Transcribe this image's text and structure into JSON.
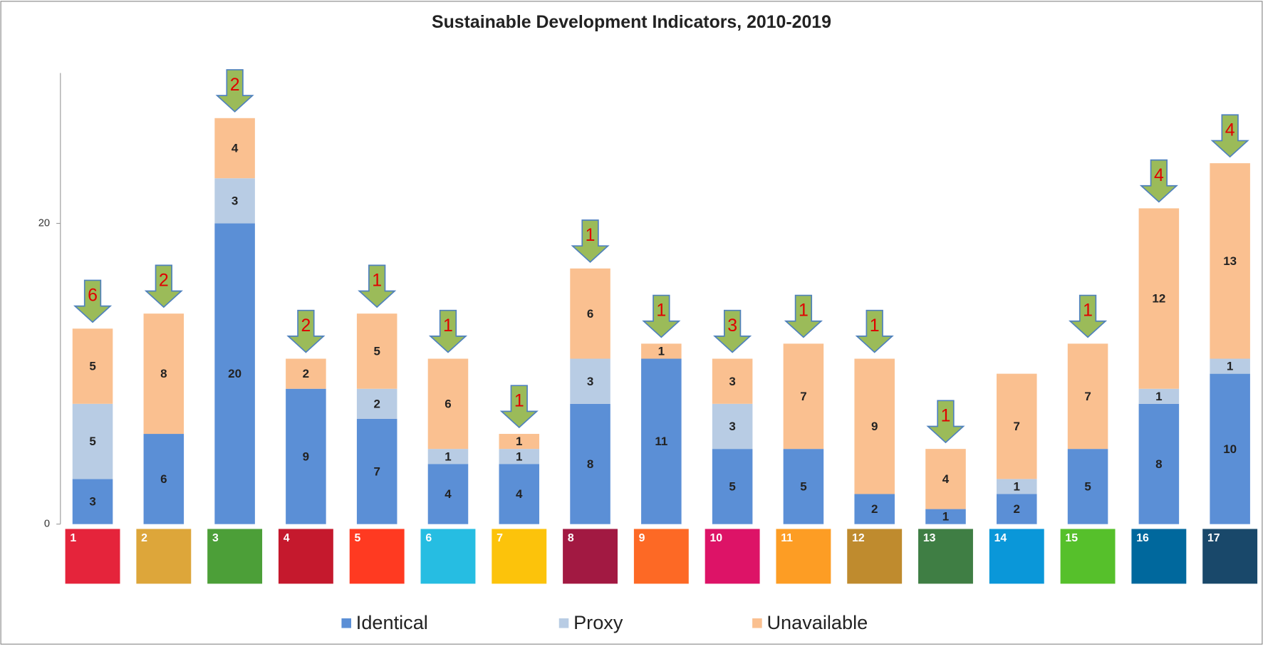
{
  "chart_data": {
    "type": "stacked_bar",
    "title": "Sustainable Development Indicators, 2010-2019",
    "categories": [
      "1",
      "2",
      "3",
      "4",
      "5",
      "6",
      "7",
      "8",
      "9",
      "10",
      "11",
      "12",
      "13",
      "14",
      "15",
      "16",
      "17"
    ],
    "icon_colors": [
      "#e5243b",
      "#dda63a",
      "#4c9f38",
      "#c5192d",
      "#ff3a21",
      "#26bde2",
      "#fcc30b",
      "#a21942",
      "#fd6925",
      "#dd1367",
      "#fd9d24",
      "#bf8b2e",
      "#3f7e44",
      "#0a97d9",
      "#56c02b",
      "#00689d",
      "#19486a"
    ],
    "series": [
      {
        "name": "Identical",
        "color": "#5b8fd6",
        "values": [
          3,
          6,
          20,
          9,
          7,
          4,
          4,
          8,
          11,
          5,
          5,
          2,
          1,
          2,
          5,
          8,
          10
        ]
      },
      {
        "name": "Proxy",
        "color": "#b8cce4",
        "values": [
          5,
          0,
          3,
          0,
          2,
          1,
          1,
          3,
          0,
          3,
          0,
          0,
          0,
          1,
          0,
          1,
          1
        ]
      },
      {
        "name": "Unavailable",
        "color": "#fac090",
        "values": [
          5,
          8,
          4,
          2,
          5,
          6,
          1,
          6,
          1,
          3,
          7,
          9,
          4,
          7,
          7,
          12,
          13
        ]
      }
    ],
    "arrows": [
      6,
      2,
      2,
      2,
      1,
      1,
      1,
      1,
      1,
      3,
      1,
      1,
      1,
      null,
      1,
      4,
      4
    ],
    "arrow_color": "#9bbb59",
    "ylim": [
      0,
      30
    ],
    "yticks": [
      0,
      20
    ]
  }
}
